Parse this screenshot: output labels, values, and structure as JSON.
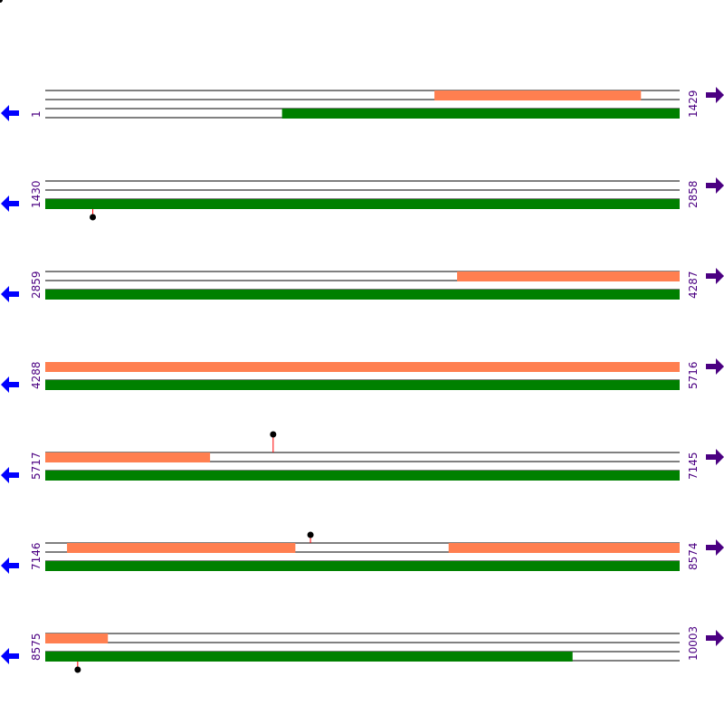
{
  "colors": {
    "track_line": "#000000",
    "feature_orange": "#ff7f50",
    "feature_green": "#008000",
    "arrow_left": "#0000ff",
    "arrow_right": "#4b0082",
    "position_text": "#4b0082",
    "marker_stem": "#ff0000",
    "marker_head": "#000000"
  },
  "icons": {
    "left": "left-arrow-icon",
    "right": "right-arrow-icon"
  },
  "rows": [
    {
      "start": "1",
      "end": "1429",
      "top": {
        "features": [
          [
            877,
            1342
          ]
        ],
        "line": true
      },
      "bottom": {
        "features": [
          [
            534,
            1429
          ]
        ],
        "line": true
      },
      "markers": []
    },
    {
      "start": "1430",
      "end": "2858",
      "top": {
        "features": [],
        "line": true
      },
      "bottom": {
        "features": [
          [
            1430,
            2858
          ]
        ],
        "line": true
      },
      "markers": [
        {
          "pos": 1537,
          "dir": "down"
        }
      ]
    },
    {
      "start": "2859",
      "end": "4287",
      "top": {
        "features": [
          [
            3786,
            4287
          ]
        ],
        "line": true
      },
      "bottom": {
        "features": [
          [
            2859,
            4287
          ]
        ],
        "line": true
      },
      "markers": []
    },
    {
      "start": "4288",
      "end": "5716",
      "top": {
        "features": [
          [
            4288,
            5716
          ]
        ],
        "line": false
      },
      "bottom": {
        "features": [
          [
            4288,
            5716
          ]
        ],
        "line": true
      },
      "markers": []
    },
    {
      "start": "5717",
      "end": "7145",
      "top": {
        "features": [
          [
            5717,
            6088
          ]
        ],
        "line": true
      },
      "bottom": {
        "features": [
          [
            5717,
            7145
          ]
        ],
        "line": true
      },
      "markers": [
        {
          "pos": 6230,
          "dir": "up"
        }
      ]
    },
    {
      "start": "7146",
      "end": "8574",
      "top": {
        "features": [
          [
            7195,
            7709
          ],
          [
            8054,
            8574
          ]
        ],
        "line": true
      },
      "bottom": {
        "features": [
          [
            7146,
            8574
          ]
        ],
        "line": true
      },
      "markers": [
        {
          "pos": 7743,
          "dir": "up",
          "short": true
        }
      ]
    },
    {
      "start": "8575",
      "end": "10003",
      "top": {
        "features": [
          [
            8575,
            8716
          ]
        ],
        "line": true
      },
      "bottom": {
        "features": [
          [
            8575,
            9762
          ]
        ],
        "line": true
      },
      "markers": [
        {
          "pos": 8648,
          "dir": "down"
        }
      ]
    }
  ]
}
